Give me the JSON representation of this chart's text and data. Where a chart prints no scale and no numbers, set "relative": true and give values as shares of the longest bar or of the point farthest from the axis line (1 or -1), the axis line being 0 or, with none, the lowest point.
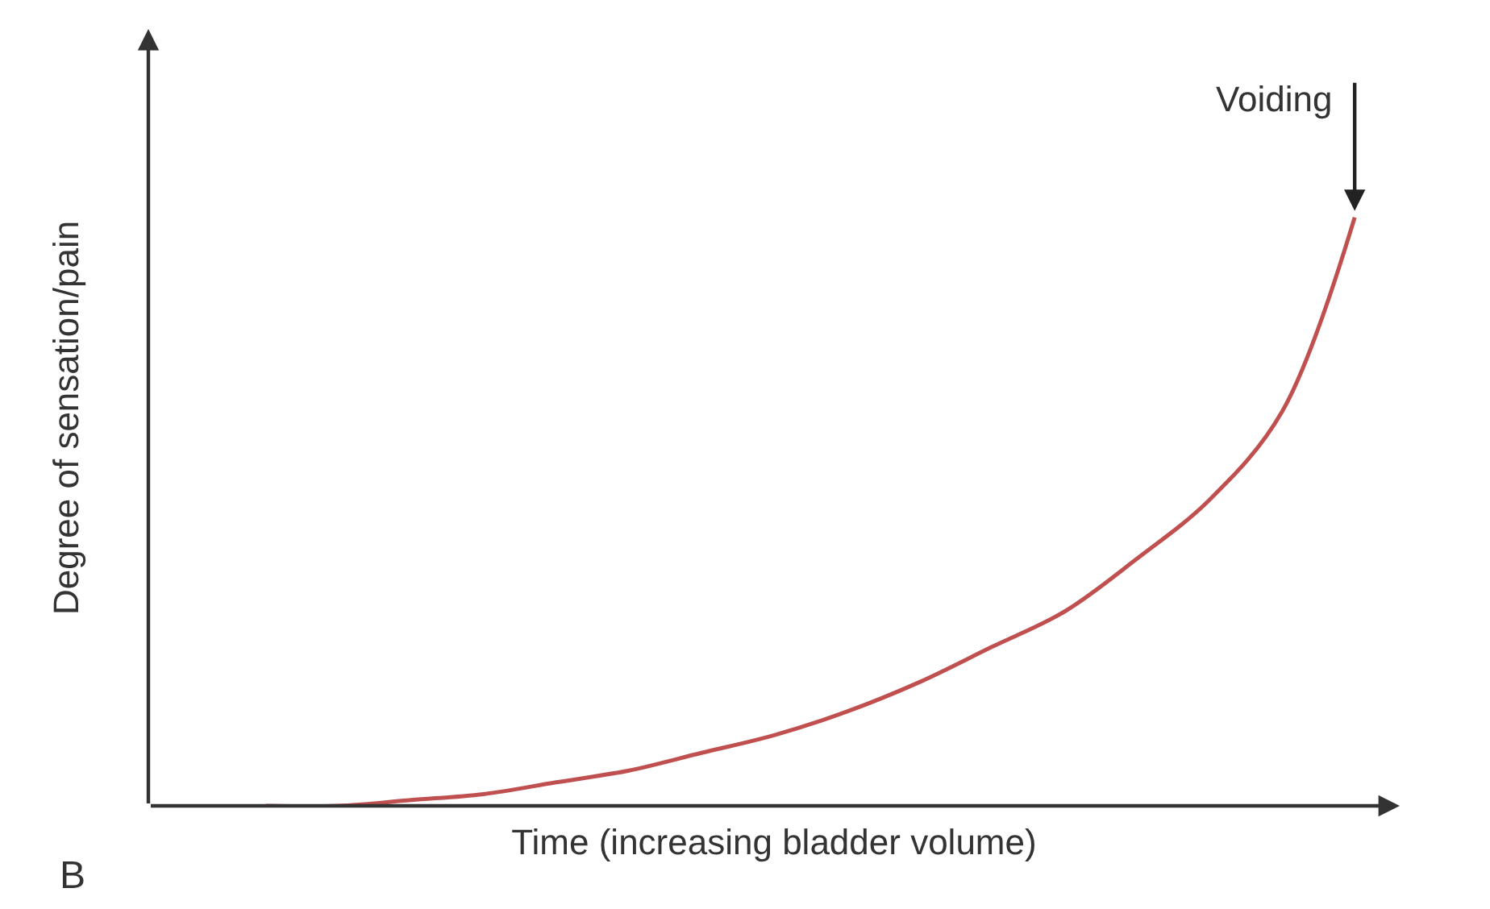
{
  "chart_data": {
    "type": "line",
    "relative": true,
    "xlabel": "Time (increasing bladder volume)",
    "ylabel": "Degree of sensation/pain",
    "categories": [
      null,
      null,
      null,
      null,
      null,
      null,
      null,
      null,
      null,
      null,
      null,
      null,
      null,
      null,
      null,
      null
    ],
    "series": [
      {
        "color": "#c0504f",
        "values": [
          0,
          0,
          0.01,
          0.02,
          0.04,
          0.06,
          0.09,
          0.12,
          0.16,
          0.21,
          0.27,
          0.33,
          0.42,
          0.52,
          0.67,
          1
        ]
      }
    ],
    "annotations": [
      "Voiding",
      "B"
    ],
    "marker": "none",
    "line_style": "solid"
  }
}
